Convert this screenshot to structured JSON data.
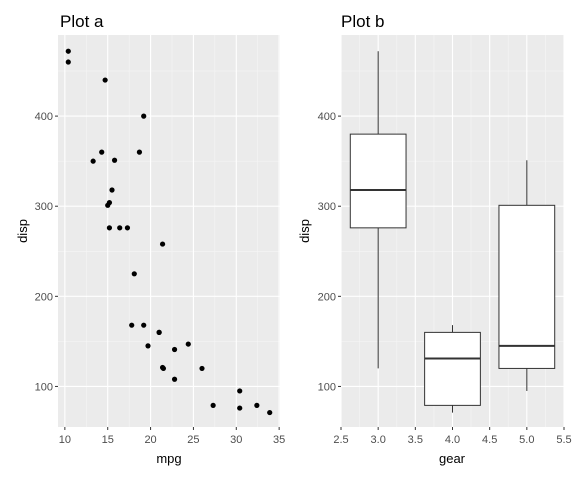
{
  "chart_data": [
    {
      "type": "scatter",
      "title": "Plot a",
      "xlabel": "mpg",
      "ylabel": "disp",
      "xlim": [
        9.2,
        35.1
      ],
      "ylim": [
        55,
        490
      ],
      "xticks": [
        10,
        15,
        20,
        25,
        30,
        35
      ],
      "yticks": [
        100,
        200,
        300,
        400
      ],
      "grid": true,
      "points": [
        {
          "x": 10.4,
          "y": 472
        },
        {
          "x": 10.4,
          "y": 460
        },
        {
          "x": 13.3,
          "y": 350
        },
        {
          "x": 14.3,
          "y": 360
        },
        {
          "x": 14.7,
          "y": 440
        },
        {
          "x": 15.0,
          "y": 301
        },
        {
          "x": 15.2,
          "y": 304
        },
        {
          "x": 15.2,
          "y": 276
        },
        {
          "x": 15.5,
          "y": 318
        },
        {
          "x": 15.8,
          "y": 351
        },
        {
          "x": 16.4,
          "y": 276
        },
        {
          "x": 17.3,
          "y": 276
        },
        {
          "x": 17.8,
          "y": 168
        },
        {
          "x": 18.1,
          "y": 225
        },
        {
          "x": 18.7,
          "y": 360
        },
        {
          "x": 19.2,
          "y": 168
        },
        {
          "x": 19.2,
          "y": 400
        },
        {
          "x": 19.7,
          "y": 145
        },
        {
          "x": 21.0,
          "y": 160
        },
        {
          "x": 21.0,
          "y": 160
        },
        {
          "x": 21.4,
          "y": 258
        },
        {
          "x": 21.4,
          "y": 121
        },
        {
          "x": 21.5,
          "y": 120
        },
        {
          "x": 22.8,
          "y": 108
        },
        {
          "x": 22.8,
          "y": 141
        },
        {
          "x": 24.4,
          "y": 147
        },
        {
          "x": 26.0,
          "y": 120
        },
        {
          "x": 27.3,
          "y": 79
        },
        {
          "x": 30.4,
          "y": 95
        },
        {
          "x": 30.4,
          "y": 76
        },
        {
          "x": 32.4,
          "y": 79
        },
        {
          "x": 33.9,
          "y": 71
        }
      ]
    },
    {
      "type": "box",
      "title": "Plot b",
      "xlabel": "gear",
      "ylabel": "disp",
      "xlim": [
        2.5,
        5.5
      ],
      "ylim": [
        55,
        490
      ],
      "xticks": [
        2.5,
        3.0,
        3.5,
        4.0,
        4.5,
        5.0,
        5.5
      ],
      "yticks": [
        100,
        200,
        300,
        400
      ],
      "grid": true,
      "boxes": [
        {
          "x": 3.0,
          "min": 120,
          "q1": 276,
          "median": 318,
          "q3": 380,
          "max": 472
        },
        {
          "x": 4.0,
          "min": 71,
          "q1": 79,
          "median": 131,
          "q3": 160,
          "max": 168
        },
        {
          "x": 5.0,
          "min": 95,
          "q1": 120,
          "median": 145,
          "q3": 301,
          "max": 351
        }
      ]
    }
  ]
}
